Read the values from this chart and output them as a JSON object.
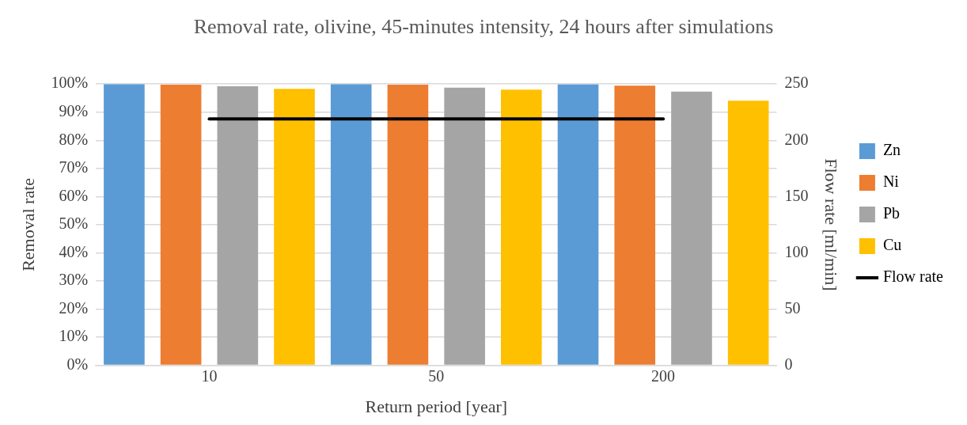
{
  "chart_data": {
    "type": "bar",
    "title": "Removal rate, olivine, 45-minutes intensity, 24 hours after simulations",
    "xlabel": "Return period [year]",
    "ylabel": "Removal rate",
    "y2label": "Flow rate [ml/min]",
    "categories": [
      "10",
      "50",
      "200"
    ],
    "series": [
      {
        "name": "Zn",
        "color": "#5b9bd5",
        "values": [
          100,
          100,
          99.9
        ]
      },
      {
        "name": "Ni",
        "color": "#ed7d31",
        "values": [
          99.8,
          99.8,
          99.4
        ]
      },
      {
        "name": "Pb",
        "color": "#a5a5a5",
        "values": [
          99.2,
          98.7,
          97.3
        ]
      },
      {
        "name": "Cu",
        "color": "#ffc000",
        "values": [
          98.3,
          98.0,
          94.1
        ]
      },
      {
        "name": "Flow rate",
        "color": "#000000",
        "type": "line",
        "axis": "y2",
        "marker": "none",
        "line_style": "solid",
        "values": [
          219,
          219,
          219
        ]
      }
    ],
    "ylim": [
      0,
      100
    ],
    "yticks": [
      {
        "value": 0,
        "label": "0%"
      },
      {
        "value": 10,
        "label": "10%"
      },
      {
        "value": 20,
        "label": "20%"
      },
      {
        "value": 30,
        "label": "30%"
      },
      {
        "value": 40,
        "label": "40%"
      },
      {
        "value": 50,
        "label": "50%"
      },
      {
        "value": 60,
        "label": "60%"
      },
      {
        "value": 70,
        "label": "70%"
      },
      {
        "value": 80,
        "label": "80%"
      },
      {
        "value": 90,
        "label": "90%"
      },
      {
        "value": 100,
        "label": "100%"
      }
    ],
    "y2lim": [
      0,
      250
    ],
    "y2ticks": [
      0,
      50,
      100,
      150,
      200,
      250
    ],
    "grid": "y",
    "legend": "right"
  }
}
